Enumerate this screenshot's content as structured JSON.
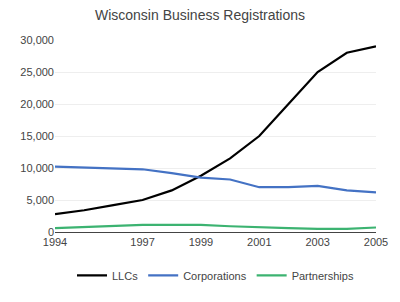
{
  "chart_data": {
    "type": "line",
    "title": "Wisconsin Business Registrations",
    "x": [
      1994,
      1995,
      1996,
      1997,
      1998,
      1999,
      2000,
      2001,
      2002,
      2003,
      2004,
      2005
    ],
    "series": [
      {
        "name": "LLCs",
        "color": "#000000",
        "values": [
          2800,
          3400,
          4200,
          5000,
          6500,
          8800,
          11500,
          15000,
          20000,
          25000,
          28000,
          29000
        ]
      },
      {
        "name": "Corporations",
        "color": "#4472c4",
        "values": [
          10200,
          10100,
          9900,
          9800,
          9200,
          8500,
          8200,
          7000,
          7000,
          7200,
          6500,
          6200
        ]
      },
      {
        "name": "Partnerships",
        "color": "#3cb371",
        "values": [
          600,
          800,
          1000,
          1100,
          1100,
          1100,
          900,
          700,
          600,
          500,
          500,
          700
        ]
      }
    ],
    "xlim": [
      1994,
      2005
    ],
    "xticks": [
      1994,
      1997,
      1999,
      2001,
      2003,
      2005
    ],
    "ylim": [
      0,
      30000
    ],
    "yticks": [
      0,
      {
        "value": 5000,
        "label": "5,000"
      },
      {
        "value": 10000,
        "label": "10,000"
      },
      {
        "value": 15000,
        "label": "15,000"
      },
      {
        "value": 20000,
        "label": "20,000"
      },
      {
        "value": 25000,
        "label": "25,000"
      },
      {
        "value": 30000,
        "label": "30,000"
      }
    ],
    "grid": "y",
    "legend": "bottom"
  }
}
